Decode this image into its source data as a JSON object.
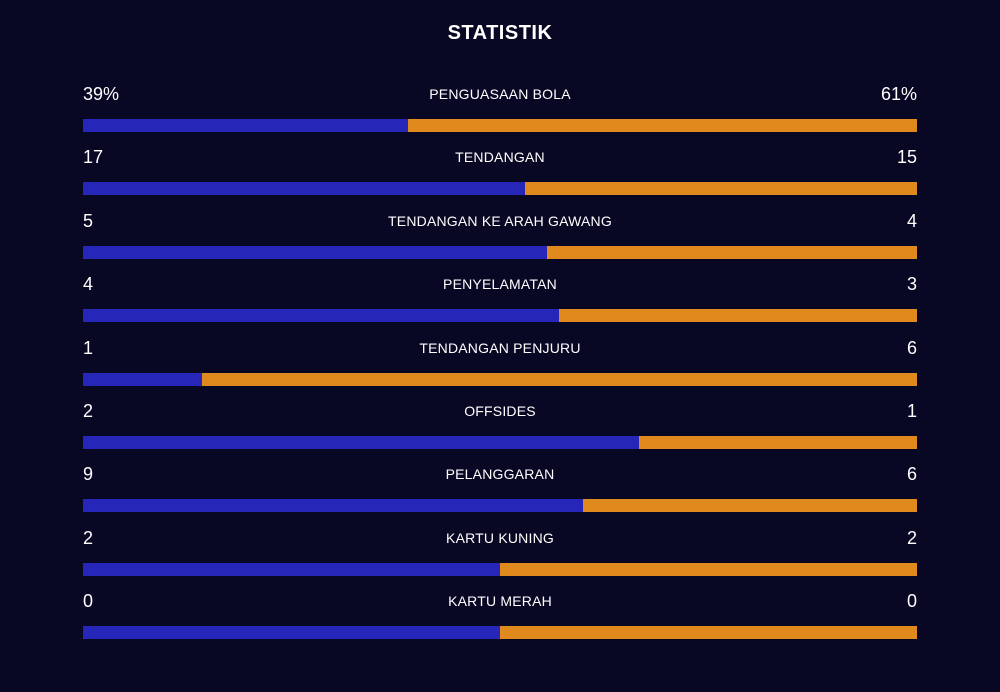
{
  "title": "STATISTIK",
  "colors": {
    "background": "#080824",
    "home": "#2626b8",
    "away": "#e08a1e"
  },
  "stats": [
    {
      "label": "PENGUASAAN BOLA",
      "home": "39%",
      "away": "61%",
      "home_share": 0.39
    },
    {
      "label": "TENDANGAN",
      "home": "17",
      "away": "15",
      "home_share": 0.53
    },
    {
      "label": "TENDANGAN KE ARAH GAWANG",
      "home": "5",
      "away": "4",
      "home_share": 0.556
    },
    {
      "label": "PENYELAMATAN",
      "home": "4",
      "away": "3",
      "home_share": 0.571
    },
    {
      "label": "TENDANGAN PENJURU",
      "home": "1",
      "away": "6",
      "home_share": 0.143
    },
    {
      "label": "OFFSIDES",
      "home": "2",
      "away": "1",
      "home_share": 0.667
    },
    {
      "label": "PELANGGARAN",
      "home": "9",
      "away": "6",
      "home_share": 0.6
    },
    {
      "label": "KARTU KUNING",
      "home": "2",
      "away": "2",
      "home_share": 0.5
    },
    {
      "label": "KARTU MERAH",
      "home": "0",
      "away": "0",
      "home_share": 0.5
    }
  ]
}
